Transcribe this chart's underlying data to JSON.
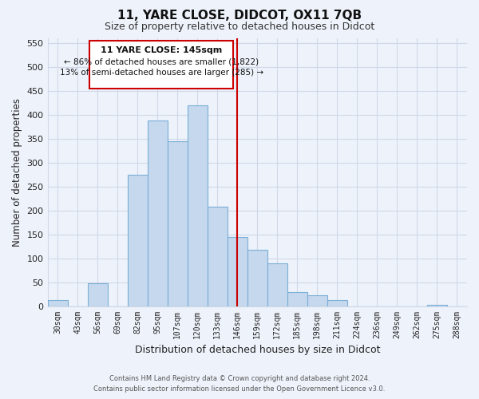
{
  "title": "11, YARE CLOSE, DIDCOT, OX11 7QB",
  "subtitle": "Size of property relative to detached houses in Didcot",
  "xlabel": "Distribution of detached houses by size in Didcot",
  "ylabel": "Number of detached properties",
  "categories": [
    "30sqm",
    "43sqm",
    "56sqm",
    "69sqm",
    "82sqm",
    "95sqm",
    "107sqm",
    "120sqm",
    "133sqm",
    "146sqm",
    "159sqm",
    "172sqm",
    "185sqm",
    "198sqm",
    "211sqm",
    "224sqm",
    "236sqm",
    "249sqm",
    "262sqm",
    "275sqm",
    "288sqm"
  ],
  "values": [
    12,
    0,
    48,
    0,
    275,
    388,
    345,
    420,
    208,
    145,
    118,
    90,
    30,
    22,
    12,
    0,
    0,
    0,
    0,
    3,
    0
  ],
  "bar_color": "#c5d8ed",
  "bar_edge_color": "#7aaed6",
  "vline_color": "#cc0000",
  "vline_index": 9,
  "annotation_title": "11 YARE CLOSE: 145sqm",
  "annotation_line1": "← 86% of detached houses are smaller (1,822)",
  "annotation_line2": "13% of semi-detached houses are larger (285) →",
  "annotation_box_color": "#ffffff",
  "annotation_box_edge": "#cc0000",
  "ylim": [
    0,
    560
  ],
  "yticks": [
    0,
    50,
    100,
    150,
    200,
    250,
    300,
    350,
    400,
    450,
    500,
    550
  ],
  "footer_line1": "Contains HM Land Registry data © Crown copyright and database right 2024.",
  "footer_line2": "Contains public sector information licensed under the Open Government Licence v3.0.",
  "background_color": "#eef3fb",
  "grid_color": "#d0d8e8",
  "title_fontsize": 11,
  "subtitle_fontsize": 9
}
